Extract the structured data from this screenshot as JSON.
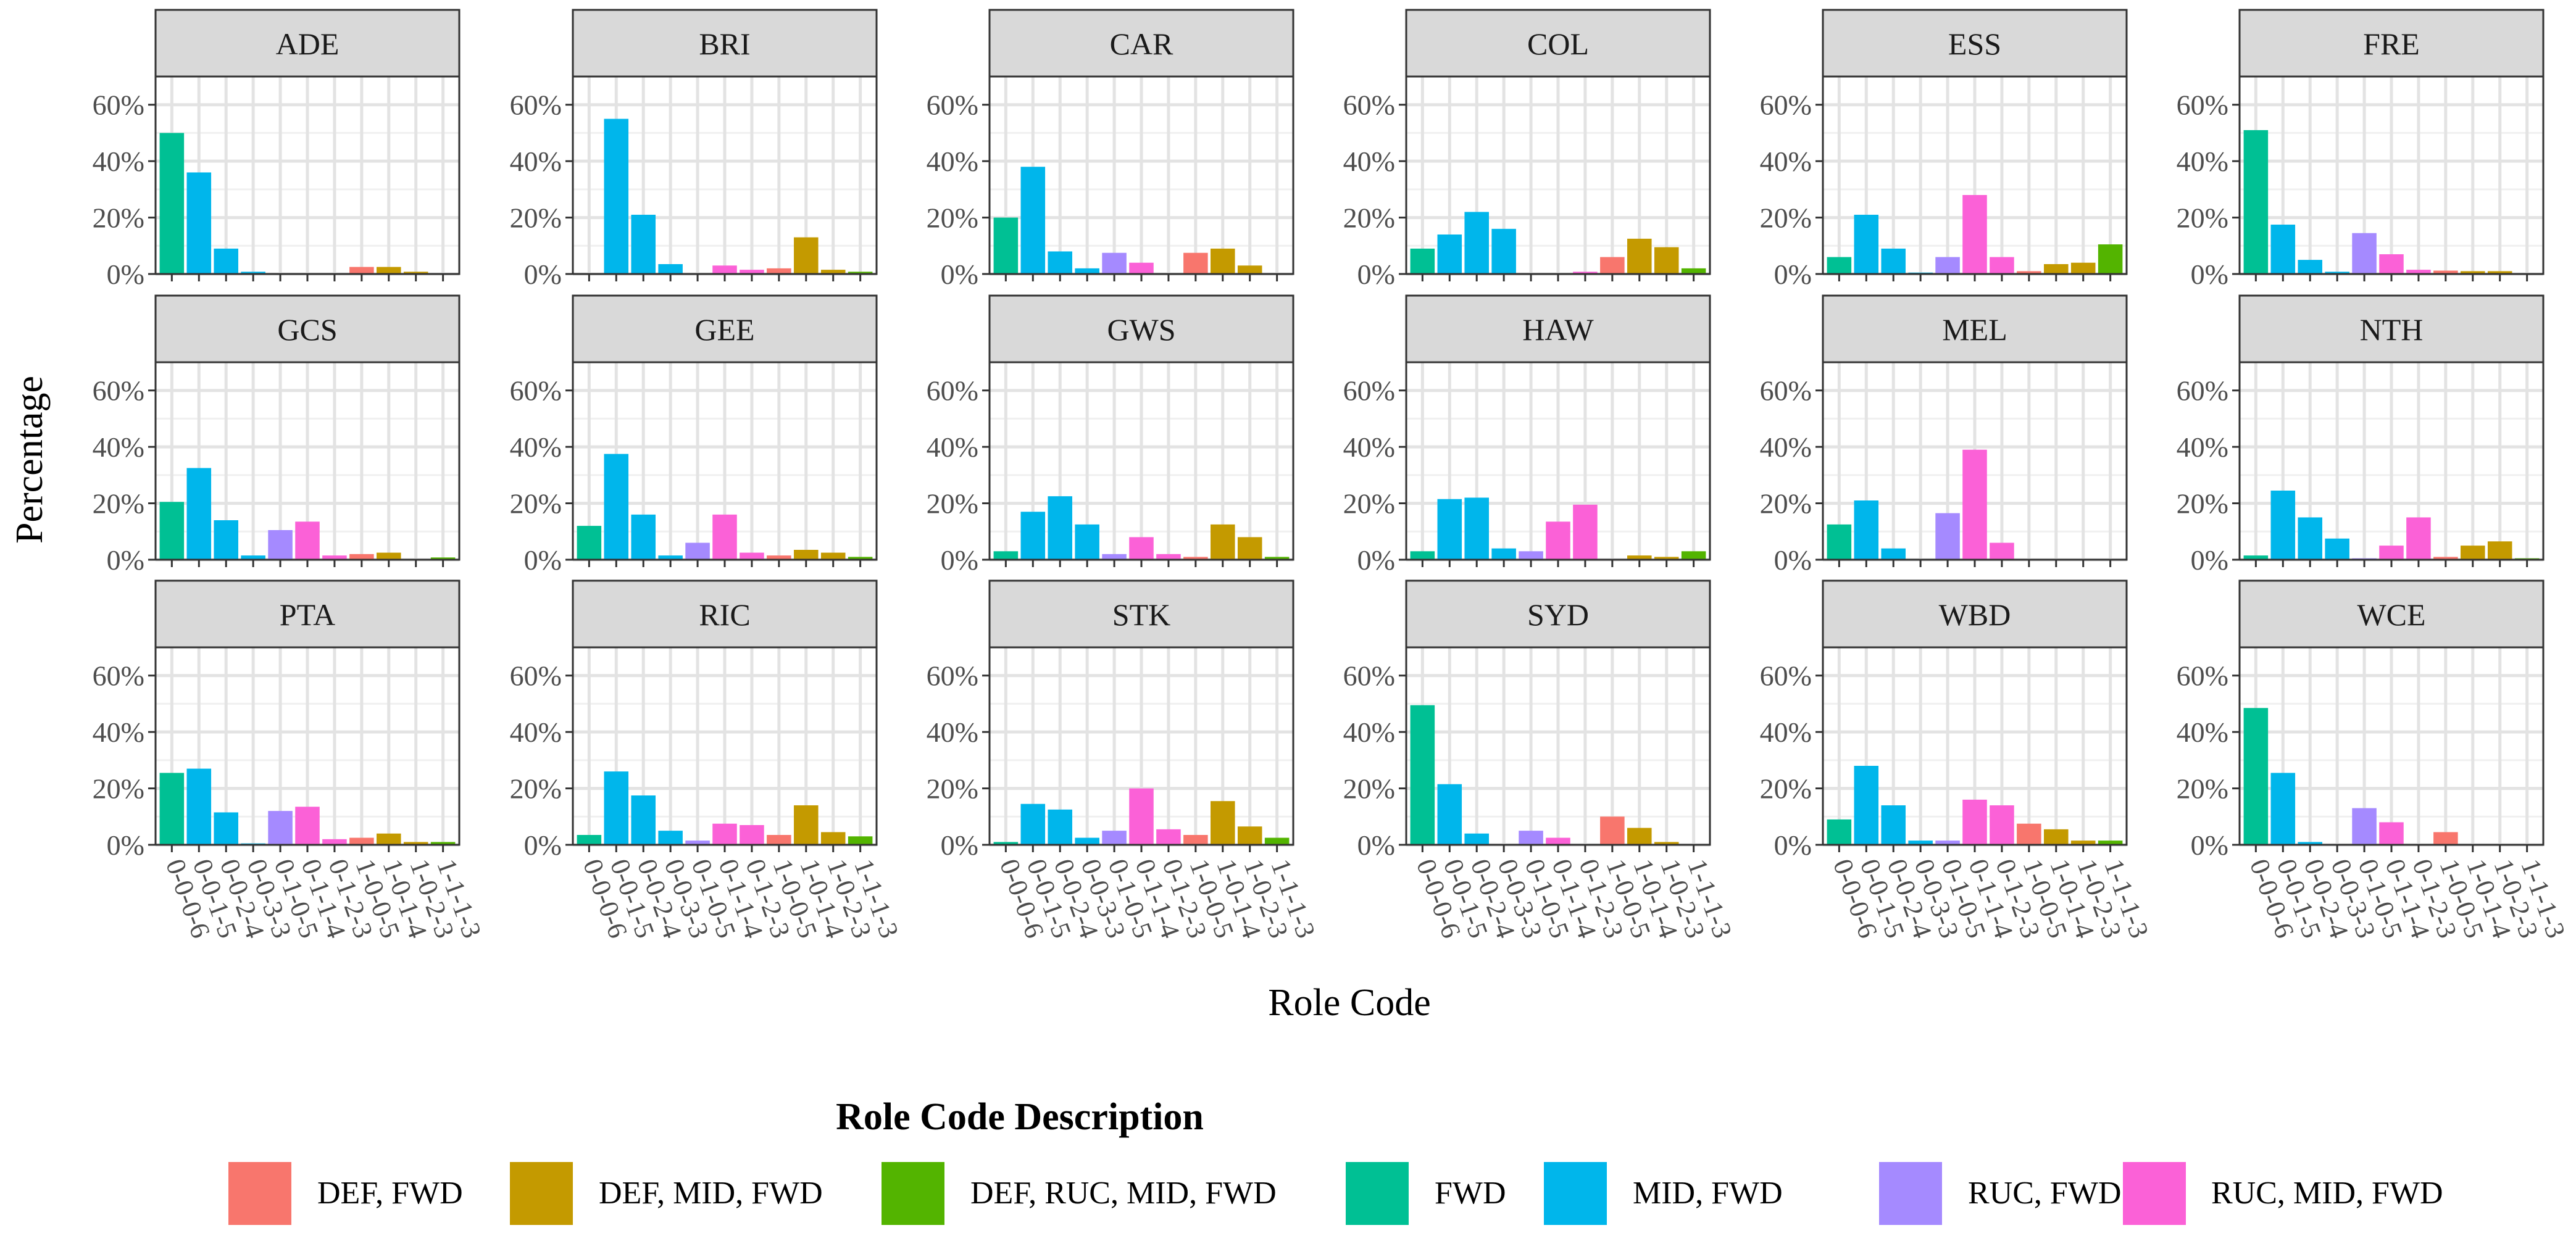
{
  "chart_data": {
    "type": "bar",
    "facet_type": "small-multiples",
    "xlabel": "Role Code",
    "ylabel": "Percentage",
    "ylim": [
      0,
      70
    ],
    "y_ticks": [
      0,
      20,
      40,
      60
    ],
    "y_tick_labels": [
      "0%",
      "20%",
      "40%",
      "60%"
    ],
    "grid": true,
    "legend_position": "bottom",
    "categories": [
      "0-0-0-6",
      "0-0-1-5",
      "0-0-2-4",
      "0-0-3-3",
      "0-1-0-5",
      "0-1-1-4",
      "0-1-2-3",
      "1-0-0-5",
      "1-0-1-4",
      "1-0-2-3",
      "1-1-1-3"
    ],
    "category_groups": [
      "FWD",
      "MID, FWD",
      "MID, FWD",
      "MID, FWD",
      "RUC, FWD",
      "RUC, MID, FWD",
      "RUC, MID, FWD",
      "DEF, FWD",
      "DEF, MID, FWD",
      "DEF, MID, FWD",
      "DEF, RUC, MID, FWD"
    ],
    "legend": {
      "title": "Role Code Description",
      "items": [
        {
          "label": "DEF, FWD",
          "color": "#F8766D"
        },
        {
          "label": "DEF, MID, FWD",
          "color": "#C49A00"
        },
        {
          "label": "DEF, RUC, MID, FWD",
          "color": "#53B400"
        },
        {
          "label": "FWD",
          "color": "#00C094"
        },
        {
          "label": "MID, FWD",
          "color": "#00B6EB"
        },
        {
          "label": "RUC, FWD",
          "color": "#A58AFF"
        },
        {
          "label": "RUC, MID, FWD",
          "color": "#FB61D7"
        }
      ]
    },
    "panels": [
      {
        "team": "ADE",
        "values": [
          50,
          36,
          9,
          0.8,
          0.2,
          0.2,
          0.2,
          2.5,
          2.5,
          0.8,
          0.3
        ]
      },
      {
        "team": "BRI",
        "values": [
          0,
          55,
          21,
          3.5,
          0,
          3,
          1.5,
          2,
          13,
          1.5,
          0.8
        ]
      },
      {
        "team": "CAR",
        "values": [
          20,
          38,
          8,
          2,
          7.5,
          4,
          0,
          7.5,
          9,
          3,
          0
        ]
      },
      {
        "team": "COL",
        "values": [
          9,
          14,
          22,
          16,
          0,
          0.3,
          0.8,
          6,
          12.5,
          9.5,
          2
        ]
      },
      {
        "team": "ESS",
        "values": [
          6,
          21,
          9,
          0.5,
          6,
          28,
          6,
          1,
          3.5,
          4,
          10.5
        ]
      },
      {
        "team": "FRE",
        "values": [
          51,
          17.5,
          5,
          0.8,
          14.5,
          7,
          1.5,
          1.2,
          1,
          1,
          0
        ]
      },
      {
        "team": "GCS",
        "values": [
          20.5,
          32.5,
          14,
          1.5,
          10.5,
          13.5,
          1.5,
          2,
          2.5,
          0.3,
          0.8
        ]
      },
      {
        "team": "GEE",
        "values": [
          12,
          37.5,
          16,
          1.5,
          6,
          16,
          2.5,
          1.5,
          3.5,
          2.5,
          1
        ]
      },
      {
        "team": "GWS",
        "values": [
          3,
          17,
          22.5,
          12.5,
          2,
          8,
          2,
          1,
          12.5,
          8,
          1
        ]
      },
      {
        "team": "HAW",
        "values": [
          3,
          21.5,
          22,
          4,
          3,
          13.5,
          19.5,
          0.3,
          1.5,
          1,
          3
        ]
      },
      {
        "team": "MEL",
        "values": [
          12.5,
          21,
          4,
          0.3,
          16.5,
          39,
          6,
          0.2,
          0.2,
          0.2,
          0.2
        ]
      },
      {
        "team": "NTH",
        "values": [
          1.5,
          24.5,
          15,
          7.5,
          0.5,
          5,
          15,
          1,
          5,
          6.5,
          0.5
        ]
      },
      {
        "team": "PTA",
        "values": [
          25.5,
          27,
          11.5,
          0.5,
          12,
          13.5,
          2,
          2.5,
          4,
          1,
          1
        ]
      },
      {
        "team": "RIC",
        "values": [
          3.5,
          26,
          17.5,
          5,
          1.5,
          7.5,
          7,
          3.5,
          14,
          4.5,
          3
        ]
      },
      {
        "team": "STK",
        "values": [
          1,
          14.5,
          12.5,
          2.5,
          5,
          20,
          5.5,
          3.5,
          15.5,
          6.5,
          2.5
        ]
      },
      {
        "team": "SYD",
        "values": [
          49.5,
          21.5,
          4,
          0,
          5,
          2.5,
          0.2,
          10,
          6,
          1,
          0
        ]
      },
      {
        "team": "WBD",
        "values": [
          9,
          28,
          14,
          1.5,
          1.5,
          16,
          14,
          7.5,
          5.5,
          1.5,
          1.5
        ]
      },
      {
        "team": "WCE",
        "values": [
          48.5,
          25.5,
          1,
          0.3,
          13,
          8,
          0,
          4.5,
          0,
          0,
          0
        ]
      }
    ]
  }
}
